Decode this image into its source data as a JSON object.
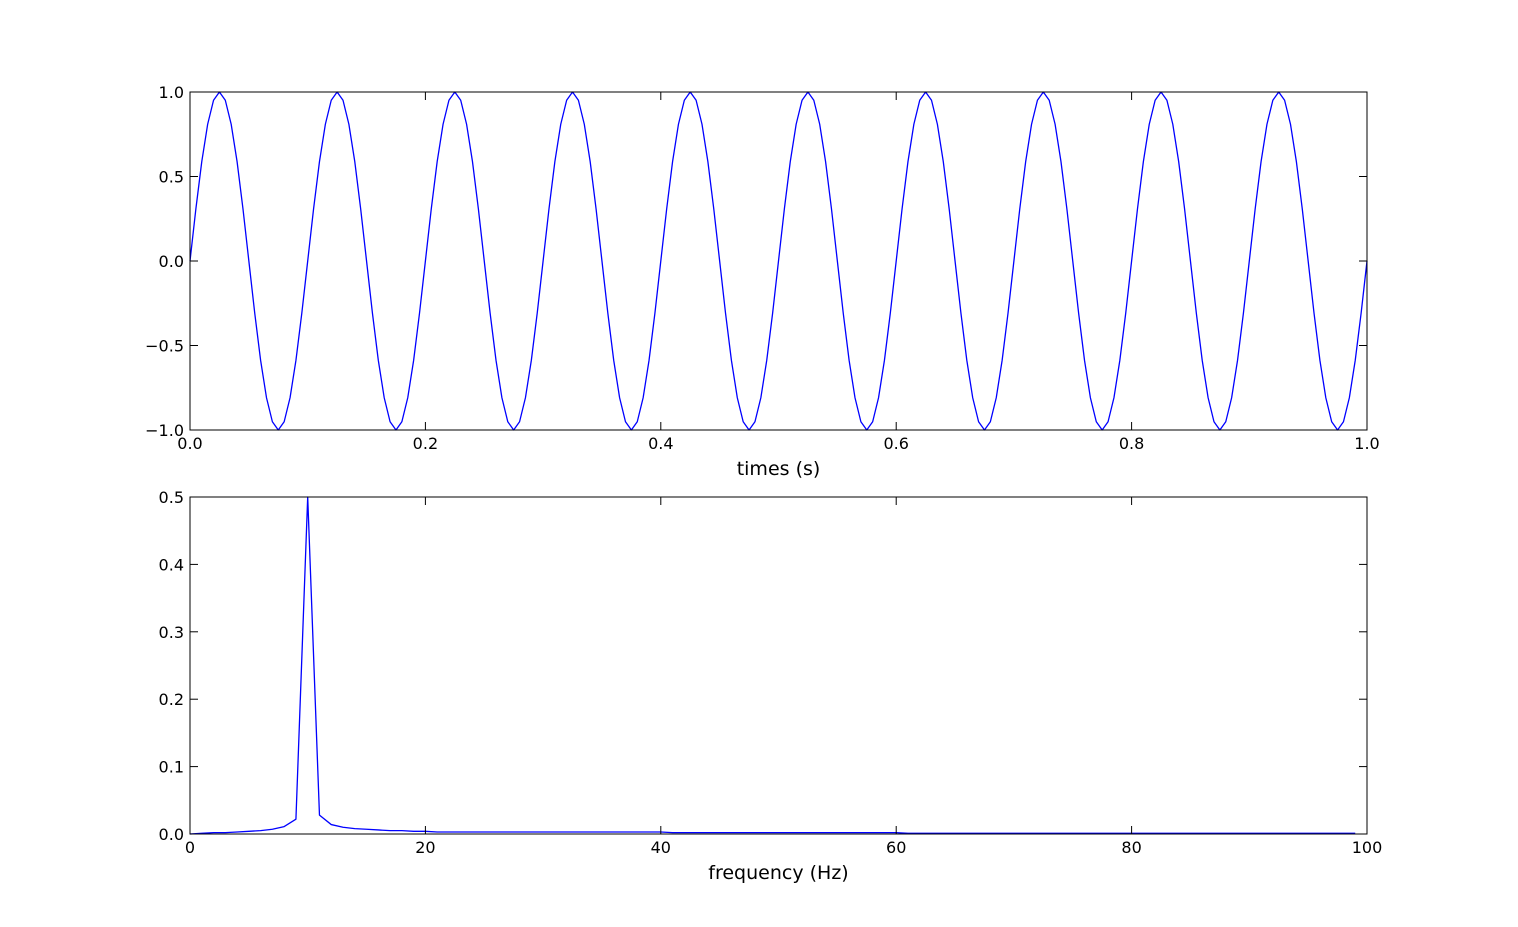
{
  "chart_data": [
    {
      "type": "line",
      "xlabel": "times (s)",
      "x": [
        0,
        0.005,
        0.01,
        0.015,
        0.02,
        0.025,
        0.03,
        0.035,
        0.04,
        0.045,
        0.05,
        0.055,
        0.06,
        0.065,
        0.07,
        0.075,
        0.08,
        0.085,
        0.09,
        0.095,
        0.1,
        0.105,
        0.11,
        0.115,
        0.12,
        0.125,
        0.13,
        0.135,
        0.14,
        0.145,
        0.15,
        0.155,
        0.16,
        0.165,
        0.17,
        0.175,
        0.18,
        0.185,
        0.19,
        0.195,
        0.2,
        0.205,
        0.21,
        0.215,
        0.22,
        0.225,
        0.23,
        0.235,
        0.24,
        0.245,
        0.25,
        0.255,
        0.26,
        0.265,
        0.27,
        0.275,
        0.28,
        0.285,
        0.29,
        0.295,
        0.3,
        0.305,
        0.31,
        0.315,
        0.32,
        0.325,
        0.33,
        0.335,
        0.34,
        0.345,
        0.35,
        0.355,
        0.36,
        0.365,
        0.37,
        0.375,
        0.38,
        0.385,
        0.39,
        0.395,
        0.4,
        0.405,
        0.41,
        0.415,
        0.42,
        0.425,
        0.43,
        0.435,
        0.44,
        0.445,
        0.45,
        0.455,
        0.46,
        0.465,
        0.47,
        0.475,
        0.48,
        0.485,
        0.49,
        0.495,
        0.5,
        0.505,
        0.51,
        0.515,
        0.52,
        0.525,
        0.53,
        0.535,
        0.54,
        0.545,
        0.55,
        0.555,
        0.56,
        0.565,
        0.57,
        0.575,
        0.58,
        0.585,
        0.59,
        0.595,
        0.6,
        0.605,
        0.61,
        0.615,
        0.62,
        0.625,
        0.63,
        0.635,
        0.64,
        0.645,
        0.65,
        0.655,
        0.66,
        0.665,
        0.67,
        0.675,
        0.68,
        0.685,
        0.69,
        0.695,
        0.7,
        0.705,
        0.71,
        0.715,
        0.72,
        0.725,
        0.73,
        0.735,
        0.74,
        0.745,
        0.75,
        0.755,
        0.76,
        0.765,
        0.77,
        0.775,
        0.78,
        0.785,
        0.79,
        0.795,
        0.8,
        0.805,
        0.81,
        0.815,
        0.82,
        0.825,
        0.83,
        0.835,
        0.84,
        0.845,
        0.85,
        0.855,
        0.86,
        0.865,
        0.87,
        0.875,
        0.88,
        0.885,
        0.89,
        0.895,
        0.9,
        0.905,
        0.91,
        0.915,
        0.92,
        0.925,
        0.93,
        0.935,
        0.94,
        0.945,
        0.95,
        0.955,
        0.96,
        0.965,
        0.97,
        0.975,
        0.98,
        0.985,
        0.99,
        0.995,
        1
      ],
      "series": [
        {
          "color": "#0000ff",
          "values": [
            0,
            0.309,
            0.588,
            0.809,
            0.951,
            1,
            0.951,
            0.809,
            0.588,
            0.309,
            0,
            -0.309,
            -0.588,
            -0.809,
            -0.951,
            -1,
            -0.951,
            -0.809,
            -0.588,
            -0.309,
            0,
            0.309,
            0.588,
            0.809,
            0.951,
            1,
            0.951,
            0.809,
            0.588,
            0.309,
            0,
            -0.309,
            -0.588,
            -0.809,
            -0.951,
            -1,
            -0.951,
            -0.809,
            -0.588,
            -0.309,
            0,
            0.309,
            0.588,
            0.809,
            0.951,
            1,
            0.951,
            0.809,
            0.588,
            0.309,
            0,
            -0.309,
            -0.588,
            -0.809,
            -0.951,
            -1,
            -0.951,
            -0.809,
            -0.588,
            -0.309,
            0,
            0.309,
            0.588,
            0.809,
            0.951,
            1,
            0.951,
            0.809,
            0.588,
            0.309,
            0,
            -0.309,
            -0.588,
            -0.809,
            -0.951,
            -1,
            -0.951,
            -0.809,
            -0.588,
            -0.309,
            0,
            0.309,
            0.588,
            0.809,
            0.951,
            1,
            0.951,
            0.809,
            0.588,
            0.309,
            0,
            -0.309,
            -0.588,
            -0.809,
            -0.951,
            -1,
            -0.951,
            -0.809,
            -0.588,
            -0.309,
            0,
            0.309,
            0.588,
            0.809,
            0.951,
            1,
            0.951,
            0.809,
            0.588,
            0.309,
            0,
            -0.309,
            -0.588,
            -0.809,
            -0.951,
            -1,
            -0.951,
            -0.809,
            -0.588,
            -0.309,
            0,
            0.309,
            0.588,
            0.809,
            0.951,
            1,
            0.951,
            0.809,
            0.588,
            0.309,
            0,
            -0.309,
            -0.588,
            -0.809,
            -0.951,
            -1,
            -0.951,
            -0.809,
            -0.588,
            -0.309,
            0,
            0.309,
            0.588,
            0.809,
            0.951,
            1,
            0.951,
            0.809,
            0.588,
            0.309,
            0,
            -0.309,
            -0.588,
            -0.809,
            -0.951,
            -1,
            -0.951,
            -0.809,
            -0.588,
            -0.309,
            0,
            0.309,
            0.588,
            0.809,
            0.951,
            1,
            0.951,
            0.809,
            0.588,
            0.309,
            0,
            -0.309,
            -0.588,
            -0.809,
            -0.951,
            -1,
            -0.951,
            -0.809,
            -0.588,
            -0.309,
            0,
            0.309,
            0.588,
            0.809,
            0.951,
            1,
            0.951,
            0.809,
            0.588,
            0.309,
            0,
            -0.309,
            -0.588,
            -0.809,
            -0.951,
            -1,
            -0.951,
            -0.809,
            -0.588,
            -0.309,
            0
          ]
        }
      ],
      "xlim": [
        0,
        1
      ],
      "xticks": [
        {
          "value": 0,
          "label": "0.0"
        },
        {
          "value": 0.2,
          "label": "0.2"
        },
        {
          "value": 0.4,
          "label": "0.4"
        },
        {
          "value": 0.6,
          "label": "0.6"
        },
        {
          "value": 0.8,
          "label": "0.8"
        },
        {
          "value": 1,
          "label": "1.0"
        }
      ],
      "ylim": [
        -1,
        1
      ],
      "yticks": [
        {
          "value": -1,
          "label": "−1.0"
        },
        {
          "value": -0.5,
          "label": "−0.5"
        },
        {
          "value": 0,
          "label": "0.0"
        },
        {
          "value": 0.5,
          "label": "0.5"
        },
        {
          "value": 1,
          "label": "1.0"
        }
      ]
    },
    {
      "type": "line",
      "xlabel": "frequency (Hz)",
      "x": [
        0,
        1,
        2,
        3,
        4,
        5,
        6,
        7,
        8,
        9,
        10,
        11,
        12,
        13,
        14,
        15,
        16,
        17,
        18,
        19,
        20,
        21,
        22,
        23,
        24,
        25,
        26,
        27,
        28,
        29,
        30,
        31,
        32,
        33,
        34,
        35,
        36,
        37,
        38,
        39,
        40,
        41,
        42,
        43,
        44,
        45,
        46,
        47,
        48,
        49,
        50,
        51,
        52,
        53,
        54,
        55,
        56,
        57,
        58,
        59,
        60,
        61,
        62,
        63,
        64,
        65,
        66,
        67,
        68,
        69,
        70,
        71,
        72,
        73,
        74,
        75,
        76,
        77,
        78,
        79,
        80,
        81,
        82,
        83,
        84,
        85,
        86,
        87,
        88,
        89,
        90,
        91,
        92,
        93,
        94,
        95,
        96,
        97,
        98,
        99
      ],
      "series": [
        {
          "color": "#0000ff",
          "values": [
            0,
            0.001,
            0.002,
            0.002,
            0.003,
            0.004,
            0.005,
            0.007,
            0.011,
            0.022,
            0.5,
            0.028,
            0.014,
            0.01,
            0.008,
            0.007,
            0.006,
            0.005,
            0.005,
            0.004,
            0.004,
            0.003,
            0.003,
            0.003,
            0.003,
            0.003,
            0.003,
            0.003,
            0.003,
            0.003,
            0.003,
            0.003,
            0.003,
            0.003,
            0.003,
            0.003,
            0.003,
            0.003,
            0.003,
            0.003,
            0.003,
            0.002,
            0.002,
            0.002,
            0.002,
            0.002,
            0.002,
            0.002,
            0.002,
            0.002,
            0.002,
            0.002,
            0.002,
            0.002,
            0.002,
            0.002,
            0.002,
            0.002,
            0.002,
            0.002,
            0.002,
            0.001,
            0.001,
            0.001,
            0.001,
            0.001,
            0.001,
            0.001,
            0.001,
            0.001,
            0.001,
            0.001,
            0.001,
            0.001,
            0.001,
            0.001,
            0.001,
            0.001,
            0.001,
            0.001,
            0.001,
            0.001,
            0.001,
            0.001,
            0.001,
            0.001,
            0.001,
            0.001,
            0.001,
            0.001,
            0.001,
            0.001,
            0.001,
            0.001,
            0.001,
            0.001,
            0.001,
            0.001,
            0.001,
            0.001
          ]
        }
      ],
      "xlim": [
        0,
        100
      ],
      "xticks": [
        0,
        20,
        40,
        60,
        80,
        100
      ],
      "ylim": [
        0,
        0.5
      ],
      "yticks": [
        {
          "value": 0,
          "label": "0.0"
        },
        0.1,
        0.2,
        0.3,
        0.4,
        0.5
      ]
    }
  ]
}
